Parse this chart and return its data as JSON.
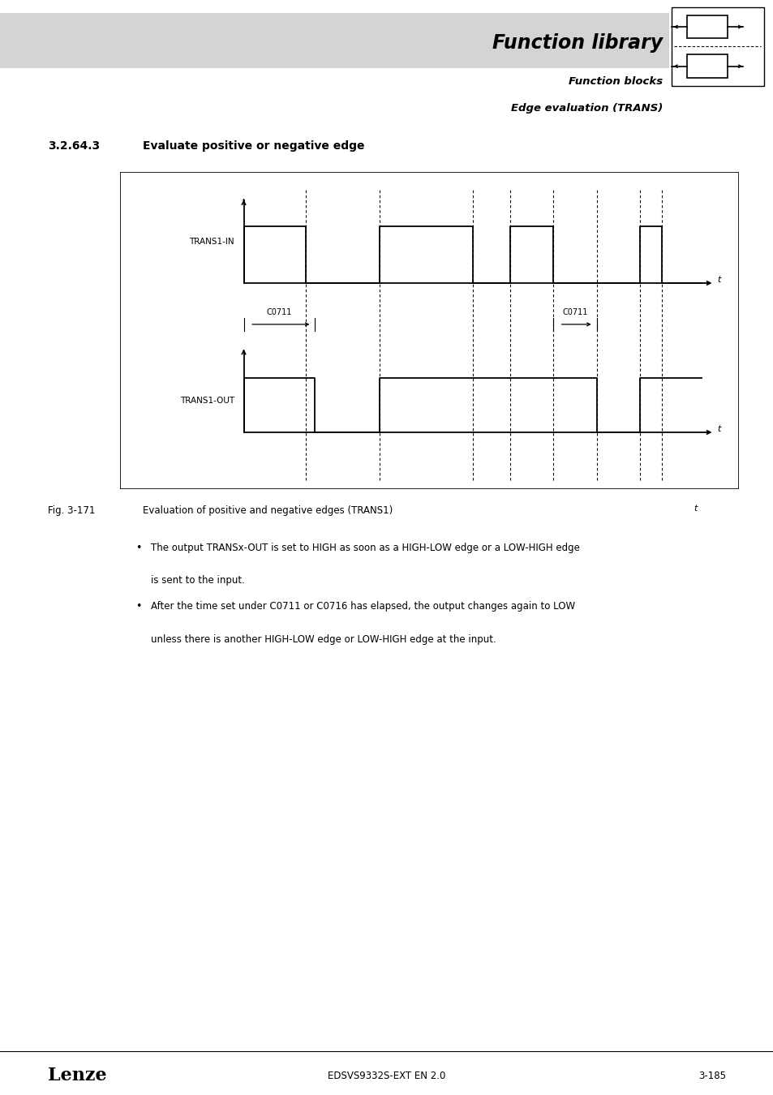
{
  "page_bg": "#ffffff",
  "header_bg": "#d8d8d8",
  "title_main": "Function library",
  "title_sub1": "Function blocks",
  "title_sub2": "Edge evaluation (TRANS)",
  "section_num": "3.2.64.3",
  "section_title": "Evaluate positive or negative edge",
  "fig_label": "Fig. 3-171",
  "fig_caption": "Evaluation of positive and negative edges (TRANS1)",
  "bullet1": "The output TRANSx-OUT is set to HIGH as soon as a HIGH-LOW edge or a LOW-HIGH edge\nis sent to the input.",
  "bullet2": "After the time set under C0711 or C0716 has elapsed, the output changes again to LOW\nunless there is another HIGH-LOW edge or LOW-HIGH edge at the input.",
  "footer_left": "Lenze",
  "footer_center": "EDSVS9332S-EXT EN 2.0",
  "footer_right": "3-185"
}
